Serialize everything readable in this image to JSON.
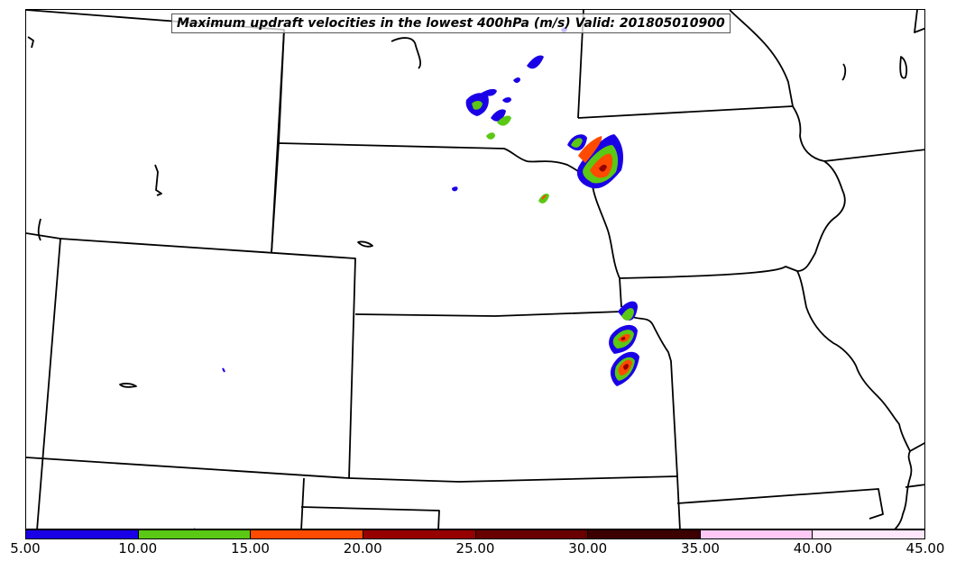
{
  "title": "Maximum updraft velocities in the lowest 400hPa (m/s) Valid: 201805010900",
  "colorbar": {
    "segments": [
      {
        "from": 5,
        "to": 10,
        "color": "#1a00e6"
      },
      {
        "from": 10,
        "to": 15,
        "color": "#5ac814"
      },
      {
        "from": 15,
        "to": 20,
        "color": "#ff4b00"
      },
      {
        "from": 20,
        "to": 25,
        "color": "#960000"
      },
      {
        "from": 25,
        "to": 30,
        "color": "#690000"
      },
      {
        "from": 30,
        "to": 35,
        "color": "#3c0000"
      },
      {
        "from": 35,
        "to": 40,
        "color": "#ffc8f5"
      },
      {
        "from": 40,
        "to": 45,
        "color": "#ffe6fa"
      }
    ],
    "tick_labels": [
      "5.00",
      "10.00",
      "15.00",
      "20.00",
      "25.00",
      "30.00",
      "35.00",
      "40.00",
      "45.00"
    ]
  }
}
